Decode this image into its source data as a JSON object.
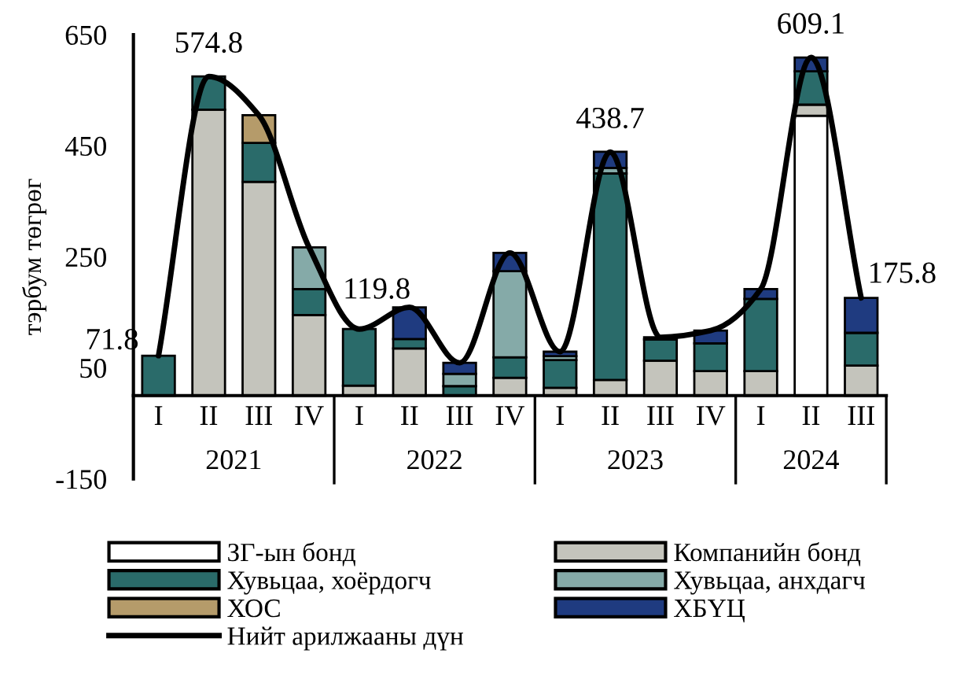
{
  "chart_data": {
    "type": "bar",
    "stacked": true,
    "ylabel": "тэрбум төгрөг",
    "categories": [
      "I",
      "II",
      "III",
      "IV",
      "I",
      "II",
      "III",
      "IV",
      "I",
      "II",
      "III",
      "IV",
      "I",
      "II",
      "III"
    ],
    "annotations": [
      "2021",
      "2022",
      "2023",
      "2024"
    ],
    "ylim": [
      -150,
      650
    ],
    "yticks": [
      -150,
      50,
      250,
      450,
      650
    ],
    "grid": false,
    "legend": "bottom",
    "series": [
      {
        "name": "ЗГ-ын бонд",
        "color": "#ffffff",
        "values": [
          null,
          null,
          null,
          null,
          null,
          null,
          null,
          null,
          null,
          null,
          null,
          null,
          null,
          504,
          null
        ]
      },
      {
        "name": "Компанийн бонд",
        "color": "#c4c4bc",
        "values": [
          null,
          515,
          385,
          145,
          18,
          85,
          null,
          32,
          14,
          28,
          63,
          44,
          44,
          20,
          54
        ]
      },
      {
        "name": "Хувьцаа, хоёрдогч",
        "color": "#2a6b6a",
        "values": [
          71.8,
          60,
          70,
          47,
          102,
          17,
          17,
          37,
          50,
          372,
          38,
          50,
          130,
          60,
          59
        ]
      },
      {
        "name": "Хувьцаа, анхдагч",
        "color": "#85aaa8",
        "values": [
          null,
          null,
          null,
          75,
          null,
          null,
          22,
          155,
          7,
          10,
          null,
          null,
          null,
          null,
          null
        ]
      },
      {
        "name": "ХОС",
        "color": "#b59b6a",
        "values": [
          null,
          null,
          50,
          null,
          null,
          null,
          null,
          null,
          null,
          null,
          null,
          null,
          null,
          null,
          null
        ]
      },
      {
        "name": "ХБҮЦ",
        "color": "#1f3b80",
        "values": [
          null,
          null,
          null,
          null,
          null,
          57,
          20,
          33,
          8,
          29,
          4,
          23,
          18,
          25,
          63
        ]
      },
      {
        "name": "Нийт арилжааны дүн",
        "type": "line",
        "color": "#000000",
        "values": [
          71.8,
          574.8,
          505,
          267,
          119.8,
          159,
          59,
          257,
          79,
          438.7,
          105,
          117,
          192,
          609.1,
          175.8
        ],
        "value_labels": [
          "71.8",
          "574.8",
          null,
          null,
          "119.8",
          null,
          null,
          null,
          null,
          "438.7",
          null,
          null,
          null,
          "609.1",
          "175.8"
        ]
      }
    ]
  }
}
